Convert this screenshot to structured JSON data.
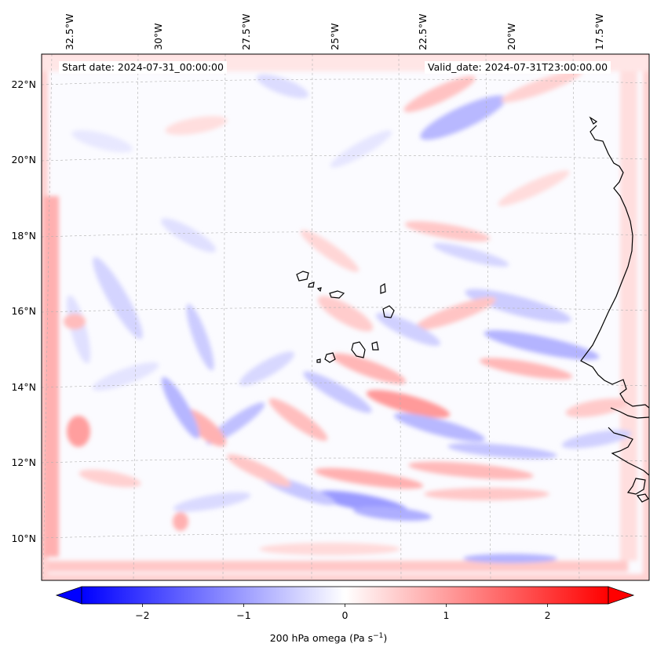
{
  "map": {
    "start_date": "Start date: 2024-07-31_00:00:00",
    "valid_date": "Valid_date: 2024-07-31T23:00:00.00",
    "longitude_labels": [
      "32.5°W",
      "30°W",
      "27.5°W",
      "25°W",
      "22.5°W",
      "20°W",
      "17.5°W"
    ],
    "latitude_labels": [
      "22°N",
      "20°N",
      "18°N",
      "16°N",
      "14°N",
      "12°N",
      "10°N"
    ],
    "longitudes": [
      -32.5,
      -30,
      -27.5,
      -25,
      -22.5,
      -20,
      -17.5
    ],
    "latitudes": [
      22,
      20,
      18,
      16,
      14,
      12,
      10
    ],
    "extent": {
      "lon_min": -33.3,
      "lon_max": -16.1,
      "lat_min": 8.9,
      "lat_max": 22.8
    },
    "field": "200 hPa omega",
    "colormap": "bwr"
  },
  "colorbar": {
    "label_main": "200 hPa omega (Pa s",
    "label_sup": "−1",
    "label_end": ")",
    "ticks": [
      "−2",
      "−1",
      "0",
      "1",
      "2"
    ],
    "tick_values": [
      -2,
      -1,
      0,
      1,
      2
    ],
    "range": [
      -2.6,
      2.6
    ],
    "extend": "both",
    "colors": {
      "min": "#0000ff",
      "mid": "#ffffff",
      "max": "#ff0000"
    }
  }
}
